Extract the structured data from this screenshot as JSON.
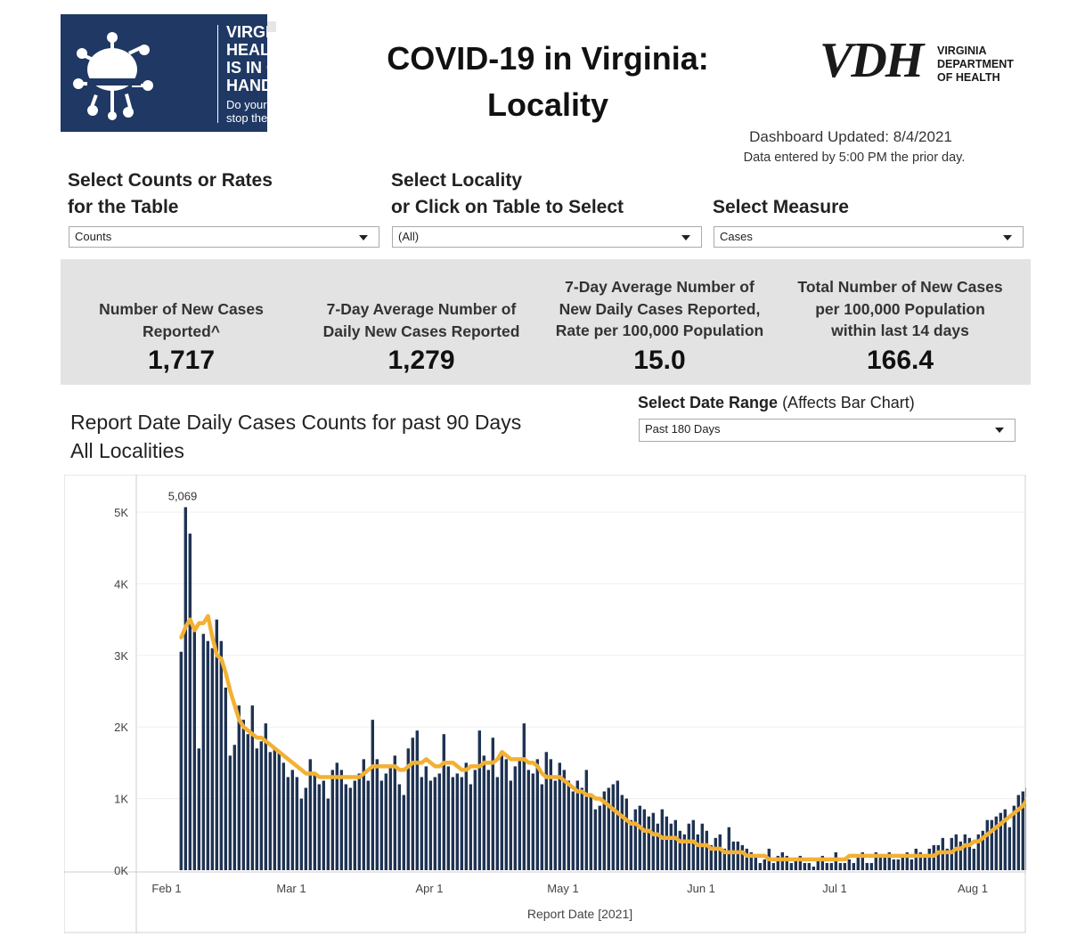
{
  "logo": {
    "line1": "VIRGINIA'S",
    "line2": "HEALTH",
    "line3": "IS IN OUR",
    "line4": "HANDS.",
    "line5": "Do your part,",
    "line6": "stop the spread."
  },
  "title_line1": "COVID-19 in Virginia:",
  "title_line2": "Locality",
  "vdh": {
    "mark": "VDH",
    "line1": "VIRGINIA",
    "line2": "DEPARTMENT",
    "line3": "OF HEALTH"
  },
  "dashboard_updated": "Dashboard Updated: 8/4/2021",
  "data_entered": "Data entered by 5:00 PM the prior day.",
  "filters": {
    "counts_label_1": "Select Counts or Rates",
    "counts_label_2": "for the Table",
    "counts_value": "Counts",
    "locality_label_1": "Select Locality",
    "locality_label_2": "or Click on Table to Select",
    "locality_value": "(All)",
    "measure_label": "Select Measure",
    "measure_value": "Cases"
  },
  "kpis": [
    {
      "label_1": "Number of New Cases",
      "label_2": "Reported^",
      "label_3": "",
      "value": "1,717"
    },
    {
      "label_1": "7-Day Average Number of",
      "label_2": "Daily New Cases Reported",
      "label_3": "",
      "value": "1,279"
    },
    {
      "label_1": "7-Day Average Number of",
      "label_2": "New Daily Cases Reported,",
      "label_3": "Rate per 100,000 Population",
      "value": "15.0"
    },
    {
      "label_1": "Total Number of New Cases",
      "label_2": "per 100,000 Population",
      "label_3": "within last 14 days",
      "value": "166.4"
    }
  ],
  "chart_heading_1": "Report Date Daily Cases Counts for past 90 Days",
  "chart_heading_2": "All Localities",
  "date_range": {
    "label_bold": "Select Date Range",
    "label_rest": " (Affects Bar Chart)",
    "value": "Past 180 Days"
  },
  "colors": {
    "bar": "#1f3353",
    "avg_line": "#f2b134",
    "logo_bg": "#1f3864",
    "kpi_bg": "#e3e3e3"
  },
  "chart_data": {
    "type": "bar",
    "xlabel": "Report Date [2021]",
    "ylabel": "",
    "ylim": [
      0,
      5500
    ],
    "y_ticks": [
      0,
      1000,
      2000,
      3000,
      4000,
      5000
    ],
    "y_tick_labels": [
      "0K",
      "1K",
      "2K",
      "3K",
      "4K",
      "5K"
    ],
    "x_tick_labels": [
      "Feb 1",
      "Mar 1",
      "Apr 1",
      "May 1",
      "Jun 1",
      "Jul 1",
      "Aug 1"
    ],
    "x_tick_days": [
      0,
      28,
      59,
      89,
      120,
      150,
      181
    ],
    "start_date": "2021-02-04",
    "annotation": {
      "label": "5,069",
      "day_index": 1
    },
    "grid": true,
    "series": [
      {
        "type": "bar",
        "values": [
          3050,
          5069,
          4700,
          3400,
          1700,
          3300,
          3200,
          3100,
          3500,
          3200,
          2550,
          1600,
          1750,
          2300,
          2100,
          1900,
          2300,
          1700,
          1800,
          2050,
          1650,
          1700,
          1650,
          1500,
          1300,
          1400,
          1300,
          1000,
          1150,
          1550,
          1350,
          1200,
          1250,
          1000,
          1400,
          1500,
          1400,
          1200,
          1150,
          1250,
          1350,
          1550,
          1250,
          2100,
          1550,
          1250,
          1350,
          1450,
          1600,
          1200,
          1050,
          1700,
          1850,
          1950,
          1300,
          1450,
          1250,
          1300,
          1350,
          1900,
          1450,
          1300,
          1350,
          1300,
          1500,
          1200,
          1400,
          1950,
          1600,
          1400,
          1850,
          1300,
          1600,
          1550,
          1250,
          1450,
          1550,
          2050,
          1400,
          1350,
          1550,
          1200,
          1650,
          1550,
          1250,
          1500,
          1400,
          1250,
          1100,
          1250,
          1150,
          1400,
          1050,
          850,
          900,
          1100,
          1150,
          1200,
          1250,
          1050,
          1000,
          700,
          850,
          900,
          850,
          750,
          800,
          650,
          850,
          750,
          650,
          700,
          550,
          500,
          650,
          700,
          500,
          650,
          550,
          350,
          450,
          500,
          300,
          600,
          400,
          400,
          350,
          300,
          250,
          200,
          100,
          150,
          300,
          100,
          200,
          250,
          200,
          100,
          150,
          200,
          100,
          100,
          50,
          150,
          200,
          100,
          100,
          250,
          100,
          100,
          150,
          100,
          200,
          250,
          100,
          100,
          250,
          200,
          200,
          250,
          150,
          150,
          200,
          250,
          150,
          300,
          250,
          200,
          300,
          350,
          350,
          450,
          300,
          450,
          500,
          400,
          500,
          450,
          300,
          500,
          550,
          700,
          700,
          750,
          800,
          850,
          600,
          900,
          1050,
          1100,
          1150,
          1250,
          900,
          1300,
          1400,
          1717
        ]
      },
      {
        "type": "line",
        "name": "7-day average",
        "values": [
          3250,
          3400,
          3500,
          3350,
          3450,
          3450,
          3550,
          3250,
          3000,
          2950,
          2750,
          2500,
          2300,
          2100,
          2000,
          1950,
          1900,
          1850,
          1850,
          1800,
          1750,
          1700,
          1650,
          1600,
          1550,
          1500,
          1450,
          1400,
          1350,
          1350,
          1350,
          1300,
          1300,
          1300,
          1300,
          1300,
          1300,
          1300,
          1300,
          1300,
          1300,
          1350,
          1400,
          1450,
          1450,
          1450,
          1450,
          1450,
          1450,
          1400,
          1400,
          1450,
          1500,
          1500,
          1500,
          1550,
          1500,
          1450,
          1450,
          1500,
          1500,
          1500,
          1450,
          1400,
          1400,
          1450,
          1450,
          1450,
          1500,
          1500,
          1500,
          1550,
          1650,
          1600,
          1550,
          1550,
          1550,
          1550,
          1500,
          1500,
          1450,
          1350,
          1300,
          1300,
          1300,
          1300,
          1250,
          1200,
          1150,
          1100,
          1100,
          1050,
          1050,
          1000,
          1000,
          950,
          900,
          850,
          800,
          750,
          700,
          650,
          650,
          600,
          550,
          550,
          500,
          500,
          450,
          450,
          450,
          450,
          400,
          400,
          400,
          400,
          350,
          350,
          350,
          300,
          300,
          300,
          250,
          250,
          250,
          250,
          250,
          200,
          200,
          200,
          200,
          200,
          150,
          150,
          150,
          150,
          150,
          150,
          150,
          150,
          150,
          150,
          150,
          150,
          150,
          150,
          150,
          150,
          150,
          150,
          200,
          200,
          200,
          200,
          200,
          200,
          200,
          200,
          200,
          200,
          200,
          200,
          200,
          200,
          200,
          200,
          200,
          200,
          200,
          200,
          250,
          250,
          250,
          250,
          300,
          300,
          350,
          350,
          400,
          400,
          450,
          500,
          550,
          600,
          650,
          700,
          750,
          800,
          850,
          900,
          1000,
          1050,
          1150,
          1200,
          1279
        ]
      }
    ]
  }
}
